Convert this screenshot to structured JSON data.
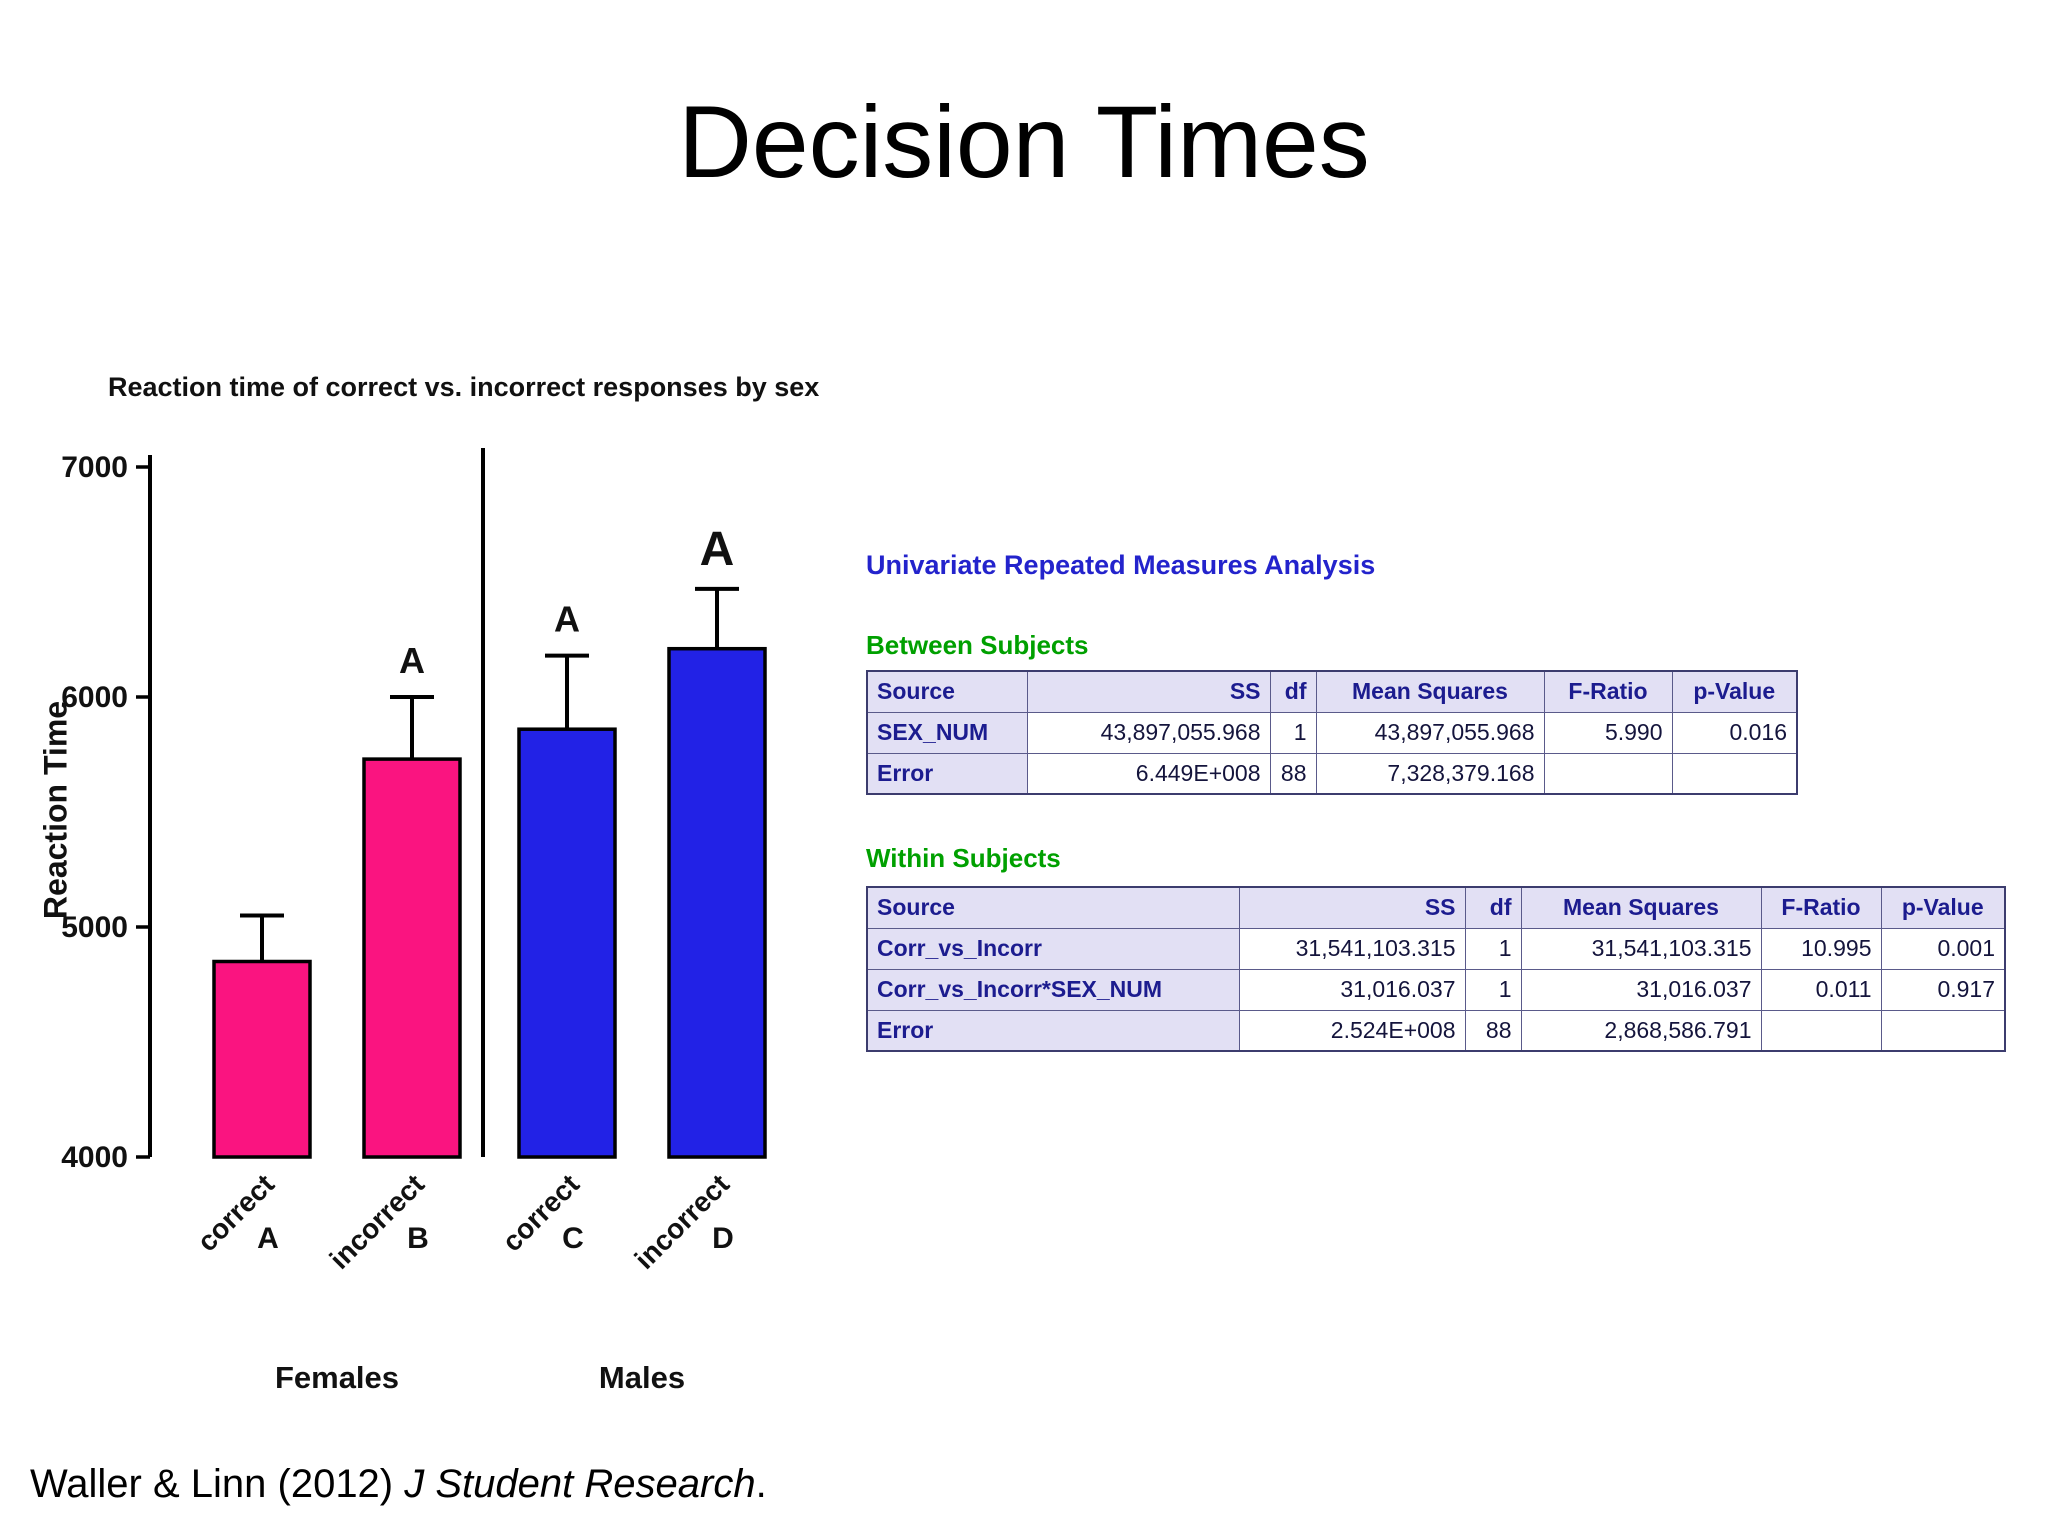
{
  "slide_title": "Decision Times",
  "footer": {
    "prefix": "Waller & Linn (2012) ",
    "italic_part": "J Student Research",
    "suffix": "."
  },
  "chart_data": {
    "type": "bar",
    "title": "Reaction time of correct vs. incorrect responses by sex",
    "ylabel": "Reaction Time",
    "xlabel": "",
    "ylim": [
      4000,
      7000
    ],
    "yticks": [
      4000,
      5000,
      6000,
      7000
    ],
    "grid": false,
    "groups": [
      {
        "label": "Females",
        "color": "#fa1480"
      },
      {
        "label": "Males",
        "color": "#2222e6"
      }
    ],
    "bars": [
      {
        "tick_label": "correct",
        "letter": "A",
        "group": "Females",
        "value": 4850,
        "error_top": 5050,
        "annotation": "",
        "color": "#fa1480"
      },
      {
        "tick_label": "incorrect",
        "letter": "B",
        "group": "Females",
        "value": 5730,
        "error_top": 6000,
        "annotation": "A",
        "color": "#fa1480"
      },
      {
        "tick_label": "correct",
        "letter": "C",
        "group": "Males",
        "value": 5860,
        "error_top": 6180,
        "annotation": "A",
        "color": "#2222e6"
      },
      {
        "tick_label": "incorrect",
        "letter": "D",
        "group": "Males",
        "value": 6210,
        "error_top": 6470,
        "annotation": "A",
        "color": "#2222e6"
      }
    ]
  },
  "analysis": {
    "title": "Univariate Repeated Measures Analysis",
    "tables": [
      {
        "heading": "Between Subjects",
        "columns": [
          "Source",
          "SS",
          "df",
          "Mean Squares",
          "F-Ratio",
          "p-Value"
        ],
        "rows": [
          [
            "SEX_NUM",
            "43,897,055.968",
            "1",
            "43,897,055.968",
            "5.990",
            "0.016"
          ],
          [
            "Error",
            "6.449E+008",
            "88",
            "7,328,379.168",
            "",
            ""
          ]
        ]
      },
      {
        "heading": "Within Subjects",
        "columns": [
          "Source",
          "SS",
          "df",
          "Mean Squares",
          "F-Ratio",
          "p-Value"
        ],
        "rows": [
          [
            "Corr_vs_Incorr",
            "31,541,103.315",
            "1",
            "31,541,103.315",
            "10.995",
            "0.001"
          ],
          [
            "Corr_vs_Incorr*SEX_NUM",
            "31,016.037",
            "1",
            "31,016.037",
            "0.011",
            "0.917"
          ],
          [
            "Error",
            "2.524E+008",
            "88",
            "2,868,586.791",
            "",
            ""
          ]
        ]
      }
    ],
    "colors": {
      "analysis_title": "#2323cc",
      "section_heading": "#00a000",
      "table_header_bg": "#e2e0f4",
      "table_header_text": "#1c1c8f",
      "table_value_text": "#14143c"
    }
  }
}
